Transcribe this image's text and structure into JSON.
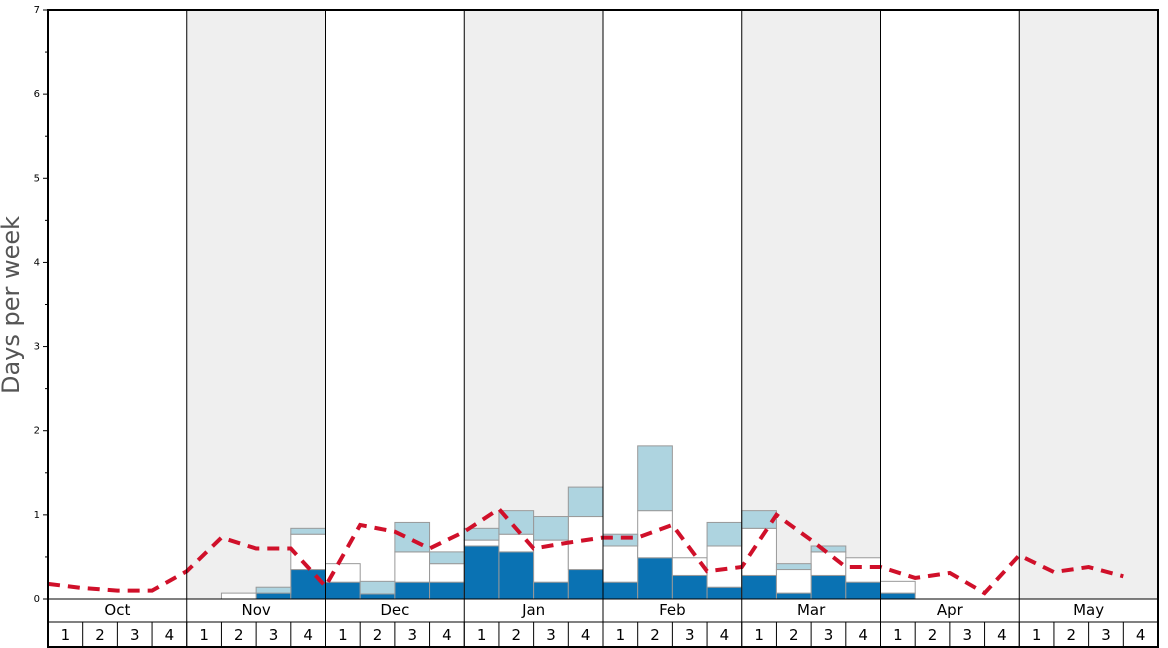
{
  "chart_data": {
    "type": "bar",
    "y_label": "Days per week",
    "months": [
      "Oct",
      "Nov",
      "Dec",
      "Jan",
      "Feb",
      "Mar",
      "Apr",
      "May"
    ],
    "categories": [
      "1",
      "2",
      "3",
      "4",
      "1",
      "2",
      "3",
      "4",
      "1",
      "2",
      "3",
      "4",
      "1",
      "2",
      "3",
      "4",
      "1",
      "2",
      "3",
      "4",
      "1",
      "2",
      "3",
      "4",
      "1",
      "2",
      "3",
      "4",
      "1",
      "2",
      "3",
      "4"
    ],
    "ylim": [
      0,
      7
    ],
    "yticks": [
      0,
      1,
      2,
      3,
      4,
      5,
      6,
      7
    ],
    "series": [
      {
        "color": "#0a72b3",
        "values": [
          0,
          0,
          0,
          0,
          0,
          0,
          0.07,
          0.35,
          0.2,
          0.06,
          0.2,
          0.2,
          0.63,
          0.56,
          0.2,
          0.35,
          0.2,
          0.49,
          0.28,
          0.14,
          0.28,
          0.07,
          0.28,
          0.2,
          0.07,
          0,
          0,
          0,
          0,
          0,
          0,
          0
        ]
      },
      {
        "color": "#ffffff",
        "values": [
          0,
          0,
          0,
          0,
          0,
          0.07,
          0,
          0.42,
          0.22,
          0,
          0.36,
          0.22,
          0.07,
          0.21,
          0.5,
          0.63,
          0.43,
          0.56,
          0.21,
          0.49,
          0.56,
          0.28,
          0.28,
          0.29,
          0.14,
          0,
          0,
          0,
          0,
          0,
          0,
          0
        ]
      },
      {
        "color": "#aed4e0",
        "values": [
          0,
          0,
          0,
          0,
          0,
          0,
          0.07,
          0.07,
          0,
          0.15,
          0.35,
          0.14,
          0.14,
          0.28,
          0.28,
          0.35,
          0.14,
          0.77,
          0,
          0.28,
          0.21,
          0.07,
          0.07,
          0,
          0,
          0,
          0,
          0,
          0,
          0,
          0,
          0
        ]
      },
      {
        "type": "line",
        "color": "#d0102a",
        "values": [
          0.18,
          0.13,
          0.1,
          0.1,
          0.33,
          0.73,
          0.6,
          0.6,
          0.15,
          0.88,
          0.8,
          0.6,
          0.8,
          1.07,
          0.6,
          0.67,
          0.73,
          0.73,
          0.88,
          0.33,
          0.38,
          1.0,
          0.7,
          0.38,
          0.38,
          0.25,
          0.31,
          0.07,
          0.52,
          0.32,
          0.38,
          0.27
        ]
      }
    ]
  }
}
